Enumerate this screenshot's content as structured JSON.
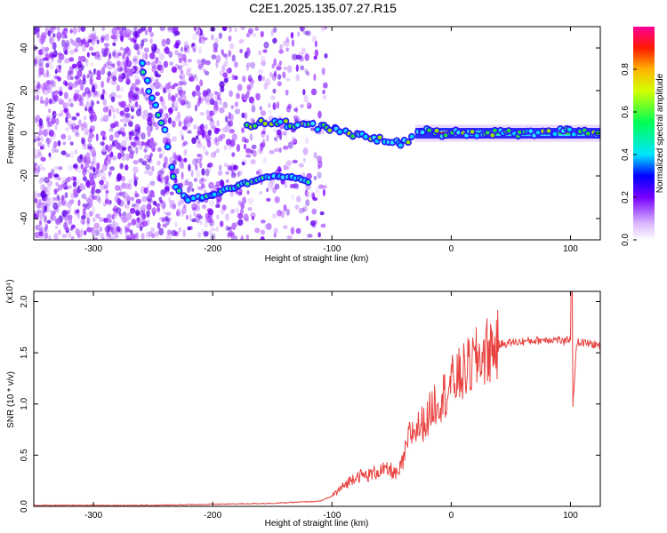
{
  "title": "C2E1.2025.135.07.27.R15",
  "chart_data": [
    {
      "type": "heatmap",
      "xlabel": "Height of straight line (km)",
      "ylabel": "Frequency (Hz)",
      "xlim": [
        -350,
        125
      ],
      "ylim": [
        -50,
        50
      ],
      "xticks": [
        -300,
        -200,
        -100,
        0,
        100
      ],
      "yticks": [
        -40,
        -20,
        0,
        20,
        40
      ],
      "colorbar": {
        "label": "Normalized spectral amplitude",
        "range": [
          0,
          1
        ],
        "ticks": [
          "0.0",
          "0.2",
          "0.4",
          "0.6",
          "0.8"
        ]
      },
      "ridge": {
        "x": [
          -260,
          -250,
          -240,
          -235,
          -230,
          -225,
          -220,
          -210,
          -200,
          -190,
          -180,
          -170,
          -160,
          -150,
          -140,
          -130,
          -120
        ],
        "y": [
          33,
          16,
          2,
          -16,
          -25,
          -29,
          -31,
          -30,
          -29,
          -27,
          -25,
          -23,
          -21,
          -20,
          -20,
          -21,
          -23
        ]
      },
      "main_band": {
        "x": [
          -170,
          -150,
          -130,
          -110,
          -100,
          -90,
          -80,
          -70,
          -60,
          -50,
          -40,
          -30,
          -20,
          -10,
          0,
          20,
          60,
          95,
          125
        ],
        "y": [
          4,
          5,
          4,
          3,
          2,
          0,
          -1,
          -2,
          -3,
          -4,
          -5,
          -1,
          1,
          0,
          0,
          0,
          0,
          1,
          0
        ]
      }
    },
    {
      "type": "line",
      "xlabel": "Height of straight line (km)",
      "ylabel": "SNR (10 * v/v)",
      "y_multiplier": "(x10⁴)",
      "xlim": [
        -350,
        125
      ],
      "ylim": [
        0,
        2.1
      ],
      "xticks": [
        -300,
        -200,
        -100,
        0,
        100
      ],
      "yticks": [
        "0.0",
        "0.5",
        "1.0",
        "1.5",
        "2.0"
      ],
      "color": "#e8423f",
      "x": [
        -350,
        -300,
        -250,
        -200,
        -150,
        -110,
        -100,
        -90,
        -80,
        -70,
        -60,
        -50,
        -45,
        -40,
        -35,
        -30,
        -25,
        -20,
        -15,
        -10,
        -5,
        0,
        10,
        20,
        30,
        40,
        50,
        60,
        70,
        80,
        90,
        95,
        100,
        102,
        105,
        110,
        120,
        125
      ],
      "y": [
        0.01,
        0.01,
        0.01,
        0.02,
        0.03,
        0.05,
        0.1,
        0.2,
        0.3,
        0.3,
        0.35,
        0.35,
        0.3,
        0.45,
        0.7,
        0.75,
        0.8,
        0.85,
        1.0,
        1.05,
        1.1,
        1.2,
        1.3,
        1.42,
        1.52,
        1.58,
        1.6,
        1.61,
        1.62,
        1.63,
        1.63,
        1.6,
        1.65,
        0.95,
        1.6,
        1.6,
        1.58,
        1.57
      ]
    }
  ]
}
